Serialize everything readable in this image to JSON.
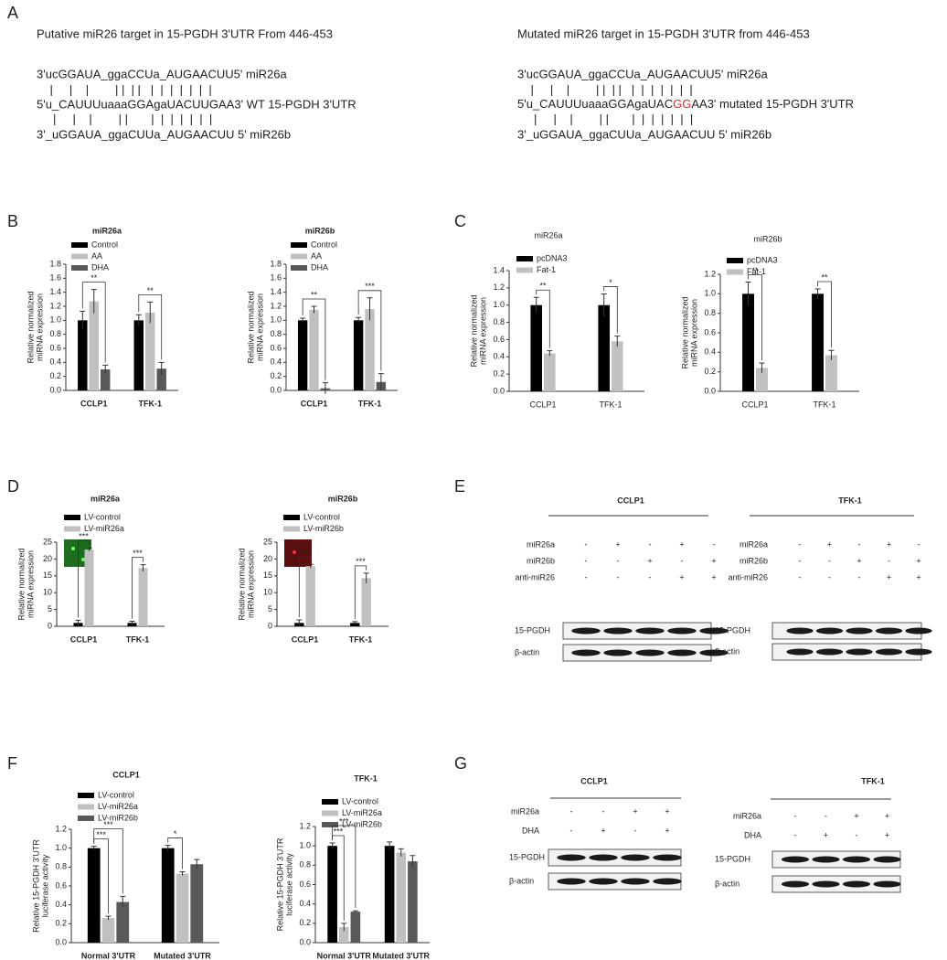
{
  "panel_labels": [
    "A",
    "B",
    "C",
    "D",
    "E",
    "F",
    "G"
  ],
  "panel_a": {
    "left": {
      "title": "Putative miR26 target in 15-PGDH 3'UTR From 446-453",
      "lines": [
        "3'ucGGAUA_ggaCCUa_AUGAACUU5' miR26a",
        "    |     |    |        | |  | |   |  |  |  |  |  |  |",
        "5'u_CAUUUuaaaGGAgaUACUUGAA3' WT 15-PGDH 3'UTR",
        "     |     |    |        | |       |  |  |  |  |  |  |",
        "3'_uGGAUA_ggaCUUa_AUGAACUU 5' miR26b"
      ]
    },
    "right": {
      "title": "Mutated miR26 target in 15-PGDH 3'UTR from 446-453",
      "lines": [
        "3'ucGGAUA_ggaCCUa_AUGAACUU5' miR26a",
        "    |     |    |        | |  | |   |  |  |  |  |  |  |",
        [
          "5'u_CAUUUuaaaGGAgaUAC",
          "GG",
          "AA3' mutated 15-PGDH 3'UTR"
        ],
        "     |     |    |        | |       |  |  |  |  |  |  |",
        "3'_uGGAUA_ggaCUUa_AUGAACUU 5' miR26b"
      ],
      "highlight_color": "#e8262a"
    }
  },
  "chart_data": [
    {
      "type": "bar",
      "title": "miR26a",
      "ylabel": [
        "Relative normalized",
        "miRNA expression"
      ],
      "categories": [
        "CCLP1",
        "TFK-1"
      ],
      "series": [
        {
          "name": "Control",
          "color": "#000000",
          "values": [
            1.0,
            1.0
          ],
          "errors": [
            0.13,
            0.08
          ]
        },
        {
          "name": "AA",
          "color": "#c0c0c0",
          "values": [
            1.27,
            1.11
          ],
          "errors": [
            0.17,
            0.15
          ]
        },
        {
          "name": "DHA",
          "color": "#595959",
          "values": [
            0.3,
            0.31
          ],
          "errors": [
            0.06,
            0.09
          ],
          "significance": [
            "**",
            "**"
          ]
        }
      ],
      "ylim": [
        0,
        1.8
      ],
      "yticks": [
        {
          "value": 0,
          "label": "0.0"
        },
        {
          "value": 0.2,
          "label": "0.2"
        },
        {
          "value": 0.4,
          "label": "0.4"
        },
        {
          "value": 0.6,
          "label": "0.6"
        },
        {
          "value": 0.8,
          "label": "0.8"
        },
        {
          "value": 1.0,
          "label": "1.0"
        },
        {
          "value": 1.2,
          "label": "1.2"
        },
        {
          "value": 1.4,
          "label": "1.4"
        },
        {
          "value": 1.6,
          "label": "1.6"
        },
        {
          "value": 1.8,
          "label": "1.8"
        }
      ]
    },
    {
      "type": "bar",
      "title": "miR26b",
      "ylabel": [
        "Relative normalized",
        "miRNA expression"
      ],
      "categories": [
        "CCLP1",
        "TFK-1"
      ],
      "series": [
        {
          "name": "Control",
          "color": "#000000",
          "values": [
            1.0,
            1.0
          ],
          "errors": [
            0.03,
            0.04
          ]
        },
        {
          "name": "AA",
          "color": "#c0c0c0",
          "values": [
            1.15,
            1.16
          ],
          "errors": [
            0.05,
            0.16
          ]
        },
        {
          "name": "DHA",
          "color": "#595959",
          "values": [
            0.03,
            0.12
          ],
          "errors": [
            0.08,
            0.12
          ],
          "significance": [
            "**",
            "***"
          ]
        }
      ],
      "ylim": [
        0,
        1.8
      ],
      "yticks": [
        {
          "value": 0,
          "label": "0.0"
        },
        {
          "value": 0.2,
          "label": "0.2"
        },
        {
          "value": 0.4,
          "label": "0.4"
        },
        {
          "value": 0.6,
          "label": "0.6"
        },
        {
          "value": 0.8,
          "label": "0.8"
        },
        {
          "value": 1.0,
          "label": "1.0"
        },
        {
          "value": 1.2,
          "label": "1.2"
        },
        {
          "value": 1.4,
          "label": "1.4"
        },
        {
          "value": 1.6,
          "label": "1.6"
        },
        {
          "value": 1.8,
          "label": "1.8"
        }
      ]
    },
    {
      "type": "bar",
      "title": "miR26a",
      "ylabel": [
        "Relative normalized",
        "miRNA expression"
      ],
      "categories": [
        "CCLP1",
        "TFK-1"
      ],
      "series": [
        {
          "name": "pcDNA3",
          "color": "#000000",
          "values": [
            1.0,
            1.0
          ],
          "errors": [
            0.09,
            0.13
          ]
        },
        {
          "name": "Fat-1",
          "color": "#c0c0c0",
          "values": [
            0.44,
            0.58
          ],
          "errors": [
            0.03,
            0.06
          ],
          "significance": [
            "**",
            "*"
          ]
        }
      ],
      "ylim": [
        0,
        1.4
      ],
      "yticks": [
        {
          "value": 0,
          "label": "0.0"
        },
        {
          "value": 0.2,
          "label": "0.2"
        },
        {
          "value": 0.4,
          "label": "0.4"
        },
        {
          "value": 0.6,
          "label": "0.6"
        },
        {
          "value": 0.8,
          "label": "0.8"
        },
        {
          "value": 1.0,
          "label": "1.0"
        },
        {
          "value": 1.2,
          "label": "1.2"
        },
        {
          "value": 1.4,
          "label": "1.4"
        }
      ]
    },
    {
      "type": "bar",
      "title": "miR26b",
      "ylabel": [
        "Relative normalized",
        "miRNA expression"
      ],
      "categories": [
        "CCLP1",
        "TFK-1"
      ],
      "series": [
        {
          "name": "pcDNA3",
          "color": "#000000",
          "values": [
            1.0,
            1.0
          ],
          "errors": [
            0.12,
            0.05
          ]
        },
        {
          "name": "Fat-1",
          "color": "#c0c0c0",
          "values": [
            0.24,
            0.37
          ],
          "errors": [
            0.05,
            0.05
          ],
          "significance": [
            "**",
            "**"
          ]
        }
      ],
      "ylim": [
        0,
        1.2
      ],
      "yticks": [
        {
          "value": 0,
          "label": "0.0"
        },
        {
          "value": 0.2,
          "label": "0.2"
        },
        {
          "value": 0.4,
          "label": "0.4"
        },
        {
          "value": 0.6,
          "label": "0.6"
        },
        {
          "value": 0.8,
          "label": "0.8"
        },
        {
          "value": 1.0,
          "label": "1.0"
        },
        {
          "value": 1.2,
          "label": "1.2"
        }
      ]
    },
    {
      "type": "bar",
      "title": "miR26a",
      "ylabel": [
        "Relative normalized",
        "miRNA expression"
      ],
      "categories": [
        "CCLP1",
        "TFK-1"
      ],
      "series": [
        {
          "name": "LV-control",
          "color": "#000000",
          "values": [
            1,
            1
          ],
          "errors": [
            0.8,
            0.5
          ]
        },
        {
          "name": "LV-miR26a",
          "color": "#c0c0c0",
          "values": [
            22.8,
            17.3
          ],
          "errors": [
            0.5,
            1.0
          ],
          "significance": [
            "***",
            "***"
          ]
        }
      ],
      "ylim": [
        0,
        25
      ],
      "yticks": [
        0,
        5,
        10,
        15,
        20,
        25
      ]
    },
    {
      "type": "bar",
      "title": "miR26b",
      "ylabel": [
        "Relative normalized",
        "miRNA expression"
      ],
      "categories": [
        "CCLP1",
        "TFK-1"
      ],
      "series": [
        {
          "name": "LV-control",
          "color": "#000000",
          "values": [
            1,
            1
          ],
          "errors": [
            0.9,
            0.4
          ]
        },
        {
          "name": "LV-miR26b",
          "color": "#c0c0c0",
          "values": [
            17.9,
            14.3
          ],
          "errors": [
            0.5,
            1.5
          ],
          "significance": [
            "***",
            "***"
          ]
        }
      ],
      "ylim": [
        0,
        25
      ],
      "yticks": [
        0,
        5,
        10,
        15,
        20,
        25
      ]
    },
    {
      "type": "bar",
      "title": "CCLP1",
      "ylabel": [
        "Relative 15-PGDH 3'UTR",
        "luciferase activity"
      ],
      "categories": [
        "Normal 3'UTR",
        "Mutated 3'UTR"
      ],
      "series": [
        {
          "name": "LV-control",
          "color": "#000000",
          "values": [
            1.0,
            1.0
          ],
          "errors": [
            0.02,
            0.03
          ]
        },
        {
          "name": "LV-miR26a",
          "color": "#c0c0c0",
          "values": [
            0.26,
            0.73
          ],
          "errors": [
            0.02,
            0.02
          ],
          "significance": [
            "***",
            "*"
          ]
        },
        {
          "name": "LV-miR26b",
          "color": "#595959",
          "values": [
            0.43,
            0.83
          ],
          "errors": [
            0.06,
            0.05
          ],
          "significance": [
            "***",
            null
          ]
        }
      ],
      "ylim": [
        0,
        1.2
      ],
      "yticks": [
        {
          "value": 0,
          "label": "0.0"
        },
        {
          "value": 0.2,
          "label": "0.2"
        },
        {
          "value": 0.4,
          "label": "0.4"
        },
        {
          "value": 0.6,
          "label": "0.6"
        },
        {
          "value": 0.8,
          "label": "0.8"
        },
        {
          "value": 1.0,
          "label": "1.0"
        },
        {
          "value": 1.2,
          "label": "1.2"
        }
      ]
    },
    {
      "type": "bar",
      "title": "TFK-1",
      "ylabel": [
        "Relative 15-PGDH 3'UTR",
        "luciferase activity"
      ],
      "categories": [
        "Normal 3'UTR",
        "Mutated 3'UTR"
      ],
      "series": [
        {
          "name": "LV-control",
          "color": "#000000",
          "values": [
            1.0,
            1.0
          ],
          "errors": [
            0.03,
            0.04
          ]
        },
        {
          "name": "LV-miR26a",
          "color": "#c0c0c0",
          "values": [
            0.16,
            0.93
          ],
          "errors": [
            0.04,
            0.04
          ],
          "significance": [
            "***",
            null
          ]
        },
        {
          "name": "LV-miR26b",
          "color": "#595959",
          "values": [
            0.32,
            0.84
          ],
          "errors": [
            0.01,
            0.06
          ],
          "significance": [
            "***",
            null
          ]
        }
      ],
      "ylim": [
        0,
        1.2
      ],
      "yticks": [
        {
          "value": 0,
          "label": "0.0"
        },
        {
          "value": 0.2,
          "label": "0.2"
        },
        {
          "value": 0.4,
          "label": "0.4"
        },
        {
          "value": 0.6,
          "label": "0.6"
        },
        {
          "value": 0.8,
          "label": "0.8"
        },
        {
          "value": 1.0,
          "label": "1.0"
        },
        {
          "value": 1.2,
          "label": "1.2"
        }
      ]
    }
  ],
  "blots": [
    {
      "title": "CCLP1",
      "rows": [
        {
          "label": "miR26a",
          "signs": [
            "-",
            "+",
            "-",
            "+",
            "-"
          ]
        },
        {
          "label": "miR26b",
          "signs": [
            "-",
            "-",
            "+",
            "-",
            "+"
          ]
        },
        {
          "label": "anti-miR26",
          "signs": [
            "-",
            "-",
            "-",
            "+",
            "+"
          ]
        }
      ],
      "bands": [
        "15-PGDH",
        "β-actin"
      ]
    },
    {
      "title": "TFK-1",
      "rows": [
        {
          "label": "miR26a",
          "signs": [
            "-",
            "+",
            "-",
            "+",
            "-"
          ]
        },
        {
          "label": "miR26b",
          "signs": [
            "-",
            "-",
            "+",
            "-",
            "+"
          ]
        },
        {
          "label": "anti-miR26",
          "signs": [
            "-",
            "-",
            "-",
            "+",
            "+"
          ]
        }
      ],
      "bands": [
        "15-PGDH",
        "β-actin"
      ]
    },
    {
      "title": "CCLP1",
      "rows": [
        {
          "label": "miR26a",
          "signs": [
            "-",
            "-",
            "+",
            "+"
          ]
        },
        {
          "label": "DHA",
          "signs": [
            "-",
            "+",
            "-",
            "+"
          ]
        }
      ],
      "bands": [
        "15-PGDH",
        "β-actin"
      ]
    },
    {
      "title": "TFK-1",
      "rows": [
        {
          "label": "miR26a",
          "signs": [
            "-",
            "-",
            "+",
            "+"
          ]
        },
        {
          "label": "DHA",
          "signs": [
            "-",
            "+",
            "-",
            "+"
          ]
        }
      ],
      "bands": [
        "15-PGDH",
        "β-actin"
      ]
    }
  ]
}
